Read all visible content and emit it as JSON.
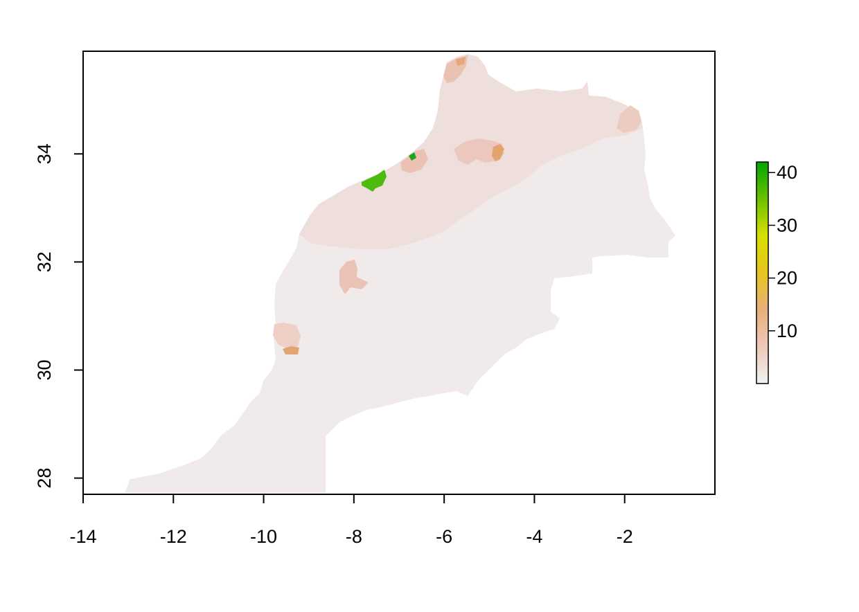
{
  "map": {
    "x_axis": {
      "range": [
        -14,
        0
      ],
      "ticks": [
        -14,
        -12,
        -10,
        -8,
        -6,
        -4,
        -2
      ],
      "tick_labels": [
        "-14",
        "-12",
        "-10",
        "-8",
        "-6",
        "-4",
        "-2"
      ]
    },
    "y_axis": {
      "range": [
        27.7,
        35.9
      ],
      "ticks": [
        28,
        30,
        32,
        34
      ],
      "tick_labels": [
        "28",
        "30",
        "32",
        "34"
      ]
    },
    "legend": {
      "placement": "right",
      "range": [
        0,
        42
      ],
      "ticks": [
        10,
        20,
        30,
        40
      ],
      "tick_labels": [
        "10",
        "20",
        "30",
        "40"
      ],
      "colors": [
        "#f2f2f2",
        "#eec8b8",
        "#e8b07a",
        "#e6c41f",
        "#d8e000",
        "#6cc000",
        "#00a600"
      ]
    }
  },
  "chart_data": {
    "type": "heatmap",
    "xlim": [
      -14,
      0
    ],
    "ylim": [
      27.7,
      35.9
    ],
    "value_range": [
      0,
      42
    ],
    "hotspots": [
      {
        "lon": -7.6,
        "lat": 33.55,
        "value": 40
      },
      {
        "lon": -6.85,
        "lat": 34.0,
        "value": 38
      },
      {
        "lon": -6.6,
        "lat": 33.9,
        "value": 8
      },
      {
        "lon": -5.0,
        "lat": 34.05,
        "value": 12
      },
      {
        "lon": -5.5,
        "lat": 35.75,
        "value": 10
      },
      {
        "lon": -8.0,
        "lat": 31.65,
        "value": 6
      },
      {
        "lon": -9.5,
        "lat": 30.4,
        "value": 12
      },
      {
        "lon": -1.9,
        "lat": 34.7,
        "value": 4
      }
    ]
  }
}
